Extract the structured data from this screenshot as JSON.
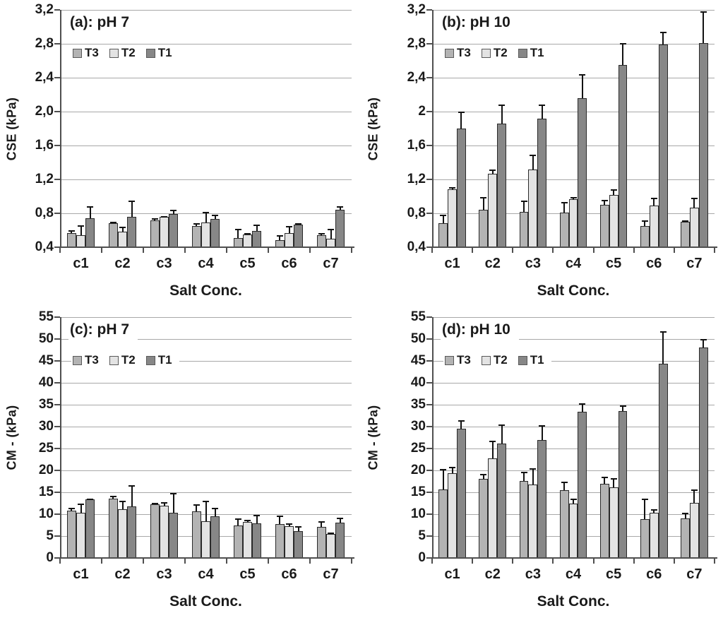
{
  "colors": {
    "grid": "#a8a8a8",
    "axis": "#4f4f4f",
    "text": "#1a1a1a",
    "error_bar": "#121212",
    "background": "#ffffff"
  },
  "chart_data": [
    {
      "type": "bar",
      "title": "(a): pH 7",
      "ylabel": "CSE (kPa)",
      "xlabel": "Salt Conc.",
      "categories": [
        "c1",
        "c2",
        "c3",
        "c4",
        "c5",
        "c6",
        "c7"
      ],
      "ylim": [
        0.4,
        3.2
      ],
      "grid": "horizontal",
      "legend_position": "top-left-inside",
      "error_bars": "upper-only",
      "yticks": [
        {
          "value": 3.2,
          "label": "3,2"
        },
        {
          "value": 2.8,
          "label": "2,8"
        },
        {
          "value": 2.4,
          "label": "2,4"
        },
        {
          "value": 2.0,
          "label": "2,0"
        },
        {
          "value": 1.6,
          "label": "1,6"
        },
        {
          "value": 1.2,
          "label": "1,2"
        },
        {
          "value": 0.8,
          "label": "0,8"
        },
        {
          "value": 0.4,
          "label": "0,4"
        }
      ],
      "series": [
        {
          "name": "T3",
          "color": "#b3b3b3",
          "values": [
            0.57,
            0.68,
            0.72,
            0.65,
            0.51,
            0.48,
            0.54
          ],
          "errors": [
            0.03,
            0.02,
            0.02,
            0.03,
            0.11,
            0.06,
            0.03
          ]
        },
        {
          "name": "T2",
          "color": "#e3e3e3",
          "values": [
            0.54,
            0.58,
            0.76,
            0.69,
            0.55,
            0.57,
            0.5
          ],
          "errors": [
            0.12,
            0.06,
            0.01,
            0.13,
            0.02,
            0.08,
            0.12
          ]
        },
        {
          "name": "T1",
          "color": "#878787",
          "values": [
            0.74,
            0.76,
            0.79,
            0.73,
            0.59,
            0.67,
            0.84
          ],
          "errors": [
            0.14,
            0.19,
            0.05,
            0.05,
            0.08,
            0.01,
            0.04
          ]
        }
      ]
    },
    {
      "type": "bar",
      "title": "(b): pH 10",
      "ylabel": "CSE (kPa)",
      "xlabel": "Salt Conc.",
      "categories": [
        "c1",
        "c2",
        "c3",
        "c4",
        "c5",
        "c6",
        "c7"
      ],
      "ylim": [
        0.4,
        3.2
      ],
      "grid": "horizontal",
      "legend_position": "top-left-inside",
      "error_bars": "upper-only",
      "yticks": [
        {
          "value": 3.2,
          "label": "3,2"
        },
        {
          "value": 2.8,
          "label": "2,8"
        },
        {
          "value": 2.4,
          "label": "2,4"
        },
        {
          "value": 2.0,
          "label": "2"
        },
        {
          "value": 1.6,
          "label": "1,6"
        },
        {
          "value": 1.2,
          "label": "1,2"
        },
        {
          "value": 0.8,
          "label": "0,8"
        },
        {
          "value": 0.4,
          "label": "0,4"
        }
      ],
      "series": [
        {
          "name": "T3",
          "color": "#b3b3b3",
          "values": [
            0.68,
            0.84,
            0.82,
            0.81,
            0.9,
            0.65,
            0.7
          ],
          "errors": [
            0.1,
            0.15,
            0.13,
            0.12,
            0.06,
            0.07,
            0.02
          ]
        },
        {
          "name": "T2",
          "color": "#e3e3e3",
          "values": [
            1.08,
            1.27,
            1.32,
            0.97,
            1.02,
            0.89,
            0.87
          ],
          "errors": [
            0.03,
            0.05,
            0.17,
            0.02,
            0.06,
            0.09,
            0.11
          ]
        },
        {
          "name": "T1",
          "color": "#878787",
          "values": [
            1.8,
            1.86,
            1.92,
            2.16,
            2.55,
            2.79,
            2.81
          ],
          "errors": [
            0.2,
            0.22,
            0.16,
            0.28,
            0.26,
            0.15,
            0.37
          ]
        }
      ]
    },
    {
      "type": "bar",
      "title": "(c): pH 7",
      "ylabel": "CM - (kPa)",
      "xlabel": "Salt Conc.",
      "categories": [
        "c1",
        "c2",
        "c3",
        "c4",
        "c5",
        "c6",
        "c7"
      ],
      "ylim": [
        0,
        55
      ],
      "grid": "horizontal",
      "legend_position": "top-left-inside",
      "error_bars": "upper-only",
      "yticks": [
        {
          "value": 55,
          "label": "55"
        },
        {
          "value": 50,
          "label": "50"
        },
        {
          "value": 45,
          "label": "45"
        },
        {
          "value": 40,
          "label": "40"
        },
        {
          "value": 35,
          "label": "35"
        },
        {
          "value": 30,
          "label": "30"
        },
        {
          "value": 25,
          "label": "25"
        },
        {
          "value": 20,
          "label": "20"
        },
        {
          "value": 15,
          "label": "15"
        },
        {
          "value": 10,
          "label": "10"
        },
        {
          "value": 5,
          "label": "5"
        },
        {
          "value": 0,
          "label": "0"
        }
      ],
      "series": [
        {
          "name": "T3",
          "color": "#b3b3b3",
          "values": [
            10.8,
            13.6,
            12.3,
            10.7,
            7.4,
            7.7,
            7.1
          ],
          "errors": [
            0.6,
            0.6,
            0.3,
            1.5,
            1.7,
            2.0,
            1.3
          ]
        },
        {
          "name": "T2",
          "color": "#e3e3e3",
          "values": [
            10.3,
            11.1,
            12.0,
            8.4,
            8.3,
            7.3,
            5.5
          ],
          "errors": [
            2.2,
            2.0,
            0.7,
            4.6,
            0.4,
            0.6,
            0.3
          ]
        },
        {
          "name": "T1",
          "color": "#878787",
          "values": [
            13.4,
            11.8,
            10.4,
            9.5,
            7.9,
            6.1,
            8.1
          ],
          "errors": [
            0.2,
            4.8,
            4.4,
            2.0,
            2.0,
            1.1,
            1.1
          ]
        }
      ]
    },
    {
      "type": "bar",
      "title": "(d): pH 10",
      "ylabel": "CM - (kPa)",
      "xlabel": "Salt Conc.",
      "categories": [
        "c1",
        "c2",
        "c3",
        "c4",
        "c5",
        "c6",
        "c7"
      ],
      "ylim": [
        0,
        55
      ],
      "grid": "horizontal",
      "legend_position": "top-left-inside",
      "error_bars": "upper-only",
      "yticks": [
        {
          "value": 55,
          "label": "55"
        },
        {
          "value": 50,
          "label": "50"
        },
        {
          "value": 45,
          "label": "45"
        },
        {
          "value": 40,
          "label": "40"
        },
        {
          "value": 35,
          "label": "35"
        },
        {
          "value": 30,
          "label": "30"
        },
        {
          "value": 25,
          "label": "25"
        },
        {
          "value": 20,
          "label": "20"
        },
        {
          "value": 15,
          "label": "15"
        },
        {
          "value": 10,
          "label": "10"
        },
        {
          "value": 5,
          "label": "5"
        },
        {
          "value": 0,
          "label": "0"
        }
      ],
      "series": [
        {
          "name": "T3",
          "color": "#b3b3b3",
          "values": [
            15.6,
            18.0,
            17.6,
            15.5,
            16.9,
            8.9,
            9.0
          ],
          "errors": [
            4.8,
            1.2,
            2.0,
            2.0,
            1.6,
            4.7,
            1.4
          ]
        },
        {
          "name": "T2",
          "color": "#e3e3e3",
          "values": [
            19.3,
            22.7,
            16.7,
            12.4,
            16.2,
            10.4,
            12.6
          ],
          "errors": [
            1.5,
            4.0,
            3.8,
            1.2,
            2.1,
            0.8,
            3.0
          ]
        },
        {
          "name": "T1",
          "color": "#878787",
          "values": [
            29.5,
            26.2,
            27.0,
            33.4,
            33.5,
            44.3,
            48.0
          ],
          "errors": [
            2.0,
            4.3,
            3.3,
            1.9,
            1.4,
            7.4,
            2.0
          ]
        }
      ]
    }
  ]
}
